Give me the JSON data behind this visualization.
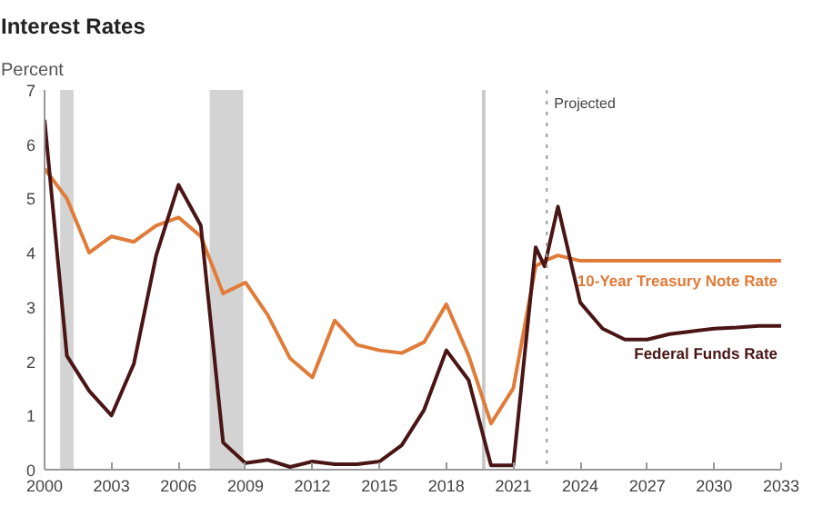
{
  "chart_data": {
    "type": "line",
    "title": "Interest Rates",
    "ylabel": "Percent",
    "xlim": [
      2000,
      2033
    ],
    "ylim": [
      0,
      7
    ],
    "xticks": [
      2000,
      2003,
      2006,
      2009,
      2012,
      2015,
      2018,
      2021,
      2024,
      2027,
      2030,
      2033
    ],
    "yticks": [
      0,
      1,
      2,
      3,
      4,
      5,
      6,
      7
    ],
    "grid": false,
    "legend": false,
    "marker": "none",
    "line_style": "solid",
    "series": [
      {
        "name": "10-Year Treasury Note Rate",
        "color": "#e07b39",
        "x": [
          2000,
          2001,
          2002,
          2003,
          2004,
          2005,
          2006,
          2007,
          2008,
          2009,
          2010,
          2011,
          2012,
          2013,
          2014,
          2015,
          2016,
          2017,
          2018,
          2019,
          2020,
          2021,
          2022,
          2022.4,
          2023,
          2024,
          2025,
          2026,
          2027,
          2028,
          2029,
          2030,
          2031,
          2032,
          2033
        ],
        "values": [
          5.55,
          5.0,
          4.0,
          4.3,
          4.2,
          4.5,
          4.65,
          4.3,
          3.25,
          3.45,
          2.85,
          2.05,
          1.7,
          2.75,
          2.3,
          2.2,
          2.15,
          2.35,
          3.05,
          2.1,
          0.85,
          1.5,
          3.75,
          3.85,
          3.95,
          3.85,
          3.85,
          3.85,
          3.85,
          3.85,
          3.85,
          3.85,
          3.85,
          3.85,
          3.85
        ]
      },
      {
        "name": "Federal Funds Rate",
        "color": "#4a1515",
        "x": [
          2000,
          2001,
          2002,
          2003,
          2004,
          2005,
          2006,
          2007,
          2008,
          2009,
          2010,
          2011,
          2012,
          2013,
          2014,
          2015,
          2016,
          2017,
          2018,
          2019,
          2020,
          2021,
          2022,
          2022.4,
          2023,
          2024,
          2025,
          2026,
          2027,
          2028,
          2029,
          2030,
          2031,
          2032,
          2033
        ],
        "values": [
          6.45,
          2.1,
          1.45,
          1.0,
          1.95,
          3.95,
          5.25,
          4.5,
          0.5,
          0.12,
          0.18,
          0.05,
          0.15,
          0.1,
          0.1,
          0.15,
          0.45,
          1.1,
          2.2,
          1.65,
          0.08,
          0.08,
          4.1,
          3.75,
          4.85,
          3.08,
          2.6,
          2.4,
          2.4,
          2.5,
          2.55,
          2.6,
          2.62,
          2.65,
          2.65
        ]
      }
    ],
    "bands": [
      {
        "axis": "x",
        "from": 2000.7,
        "to": 2001.3,
        "color": "#d3d3d3"
      },
      {
        "axis": "x",
        "from": 2007.4,
        "to": 2008.9,
        "color": "#d3d3d3"
      },
      {
        "axis": "x",
        "from": 2019.6,
        "to": 2019.75,
        "color": "#c8c8c8"
      }
    ],
    "ref_lines": [
      {
        "axis": "x",
        "value": 2022.5,
        "label": "Projected",
        "color": "#999999",
        "line_style": "dotted"
      }
    ]
  }
}
